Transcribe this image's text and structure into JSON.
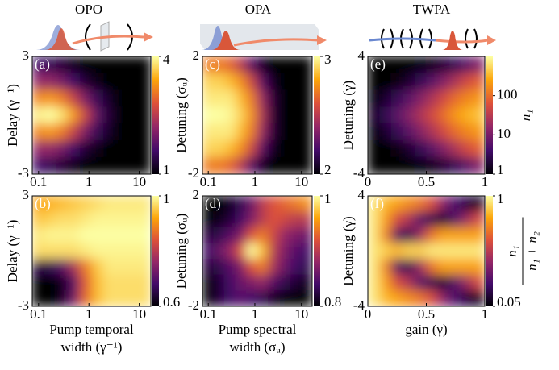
{
  "column_titles": [
    "OPO",
    "OPA",
    "TWPA"
  ],
  "colormap": [
    "#000004",
    "#420a68",
    "#932667",
    "#dd513a",
    "#fca50a",
    "#fcffa4"
  ],
  "chart_data": [
    {
      "type": "heatmap",
      "panel_label": "(a)",
      "y_label": "Delay (γ⁻¹)",
      "xlog": true,
      "xlim": [
        0.075,
        17
      ],
      "xticks": [
        0.1,
        1,
        10
      ],
      "ylim": [
        -3,
        3
      ],
      "yticks": [
        -3,
        3
      ],
      "zlim": [
        1,
        4
      ],
      "zticks": [
        1,
        4
      ],
      "z": [
        [
          1.6,
          1.5,
          1.3,
          1.1,
          1,
          1,
          1,
          1,
          1,
          1
        ],
        [
          2.2,
          2.2,
          2,
          1.6,
          1.3,
          1.1,
          1,
          1,
          1,
          1
        ],
        [
          3.2,
          3.3,
          3.1,
          2.6,
          2,
          1.5,
          1.2,
          1,
          1,
          1
        ],
        [
          3.9,
          4,
          3.8,
          3.3,
          2.6,
          1.8,
          1.3,
          1,
          1,
          1
        ],
        [
          3.2,
          3.3,
          3.1,
          2.6,
          2,
          1.5,
          1.2,
          1,
          1,
          1
        ],
        [
          2.2,
          2.2,
          2,
          1.6,
          1.3,
          1.1,
          1,
          1,
          1,
          1
        ],
        [
          1.6,
          1.5,
          1.3,
          1.1,
          1,
          1,
          1,
          1,
          1,
          1
        ]
      ]
    },
    {
      "type": "heatmap",
      "panel_label": "(b)",
      "y_label": "Delay (γ⁻¹)",
      "x_label": [
        "Pump temporal",
        "width (γ⁻¹)"
      ],
      "xlog": true,
      "xlim": [
        0.075,
        17
      ],
      "xticks": [
        0.1,
        1,
        10
      ],
      "ylim": [
        -3,
        3
      ],
      "yticks": [
        -3,
        3
      ],
      "zlim": [
        0.6,
        1
      ],
      "zticks": [
        0.6,
        1
      ],
      "z": [
        [
          0.92,
          0.93,
          0.94,
          0.95,
          0.96,
          0.97,
          0.98,
          0.98,
          0.98,
          0.98
        ],
        [
          0.95,
          0.96,
          0.97,
          0.97,
          0.98,
          0.99,
          0.99,
          0.99,
          0.99,
          0.99
        ],
        [
          0.98,
          0.99,
          0.99,
          0.99,
          1,
          1,
          1,
          1,
          1,
          1
        ],
        [
          0.97,
          0.97,
          0.97,
          0.97,
          0.98,
          0.99,
          0.99,
          0.99,
          0.99,
          0.99
        ],
        [
          0.65,
          0.66,
          0.7,
          0.78,
          0.88,
          0.95,
          0.98,
          0.98,
          0.98,
          0.98
        ],
        [
          0.6,
          0.6,
          0.62,
          0.7,
          0.85,
          0.94,
          0.97,
          0.97,
          0.97,
          0.97
        ],
        [
          0.6,
          0.6,
          0.62,
          0.72,
          0.86,
          0.94,
          0.97,
          0.97,
          0.97,
          0.97
        ]
      ]
    },
    {
      "type": "heatmap",
      "panel_label": "(c)",
      "y_label": "Detuning (σᵤ)",
      "xlog": true,
      "xlim": [
        0.075,
        17
      ],
      "xticks": [
        0.1,
        1,
        10
      ],
      "ylim": [
        -2,
        2
      ],
      "yticks": [
        -2,
        2
      ],
      "zlim": [
        2,
        3
      ],
      "zticks": [
        2,
        3
      ],
      "z": [
        [
          2.7,
          2.7,
          2.65,
          2.5,
          2.25,
          2.05,
          2,
          2,
          2,
          2
        ],
        [
          2.9,
          2.9,
          2.85,
          2.75,
          2.55,
          2.25,
          2.05,
          2,
          2,
          2
        ],
        [
          2.95,
          2.95,
          2.95,
          2.85,
          2.7,
          2.4,
          2.1,
          2,
          2,
          2
        ],
        [
          3,
          3,
          2.98,
          2.9,
          2.75,
          2.45,
          2.1,
          2,
          2,
          2
        ],
        [
          2.95,
          2.95,
          2.95,
          2.85,
          2.7,
          2.4,
          2.1,
          2,
          2,
          2
        ],
        [
          2.9,
          2.9,
          2.85,
          2.75,
          2.55,
          2.25,
          2.05,
          2,
          2,
          2
        ],
        [
          2.7,
          2.7,
          2.65,
          2.5,
          2.25,
          2.05,
          2,
          2,
          2,
          2
        ]
      ]
    },
    {
      "type": "heatmap",
      "panel_label": "(d)",
      "y_label": "Detuning (σᵤ)",
      "x_label": [
        "Pump spectral",
        "width (σᵤ)"
      ],
      "xlog": true,
      "xlim": [
        0.075,
        17
      ],
      "xticks": [
        0.1,
        1,
        10
      ],
      "ylim": [
        -2,
        2
      ],
      "yticks": [
        -2,
        2
      ],
      "zlim": [
        0.8,
        1
      ],
      "zticks": [
        0.8,
        1
      ],
      "z": [
        [
          0.8,
          0.8,
          0.81,
          0.83,
          0.86,
          0.9,
          0.92,
          0.93,
          0.94,
          0.95
        ],
        [
          0.8,
          0.81,
          0.82,
          0.84,
          0.87,
          0.9,
          0.92,
          0.91,
          0.9,
          0.9
        ],
        [
          0.82,
          0.83,
          0.85,
          0.87,
          0.92,
          0.94,
          0.91,
          0.88,
          0.87,
          0.86
        ],
        [
          0.84,
          0.86,
          0.88,
          0.92,
          1,
          0.97,
          0.9,
          0.87,
          0.85,
          0.84
        ],
        [
          0.82,
          0.83,
          0.85,
          0.87,
          0.92,
          0.94,
          0.89,
          0.86,
          0.84,
          0.83
        ],
        [
          0.8,
          0.82,
          0.84,
          0.86,
          0.87,
          0.88,
          0.85,
          0.83,
          0.82,
          0.81
        ],
        [
          0.8,
          0.82,
          0.84,
          0.85,
          0.84,
          0.83,
          0.81,
          0.8,
          0.8,
          0.8
        ]
      ]
    },
    {
      "type": "heatmap",
      "panel_label": "(e)",
      "y_label": "Detuning (γ)",
      "xlog": false,
      "xlim": [
        0,
        1
      ],
      "xticks": [
        0,
        0.5,
        1
      ],
      "ylim": [
        -4,
        4
      ],
      "yticks": [
        -4,
        4
      ],
      "zlim": [
        1,
        1000
      ],
      "zlog": true,
      "zticks": [
        1,
        10,
        100
      ],
      "colorbar_label": "n₁",
      "z": [
        [
          1,
          1,
          1,
          1,
          1.1,
          1.3,
          2,
          3,
          6,
          12
        ],
        [
          1,
          1,
          1.2,
          1.8,
          3,
          6,
          12,
          25,
          50,
          80
        ],
        [
          1.1,
          1.8,
          3,
          6,
          12,
          25,
          50,
          100,
          150,
          200
        ],
        [
          1.5,
          3,
          6,
          12,
          25,
          50,
          100,
          200,
          300,
          400
        ],
        [
          1.1,
          1.8,
          3,
          6,
          12,
          25,
          50,
          100,
          150,
          200
        ],
        [
          1,
          1,
          1.2,
          1.8,
          3,
          6,
          12,
          25,
          50,
          80
        ],
        [
          1,
          1,
          1,
          1,
          1.1,
          1.3,
          2,
          3,
          6,
          12
        ]
      ]
    },
    {
      "type": "heatmap",
      "panel_label": "(f)",
      "y_label": "Detuning (γ)",
      "x_label": [
        "gain (γ)"
      ],
      "xlog": false,
      "xlim": [
        0,
        1
      ],
      "xticks": [
        0,
        0.5,
        1
      ],
      "ylim": [
        -4,
        4
      ],
      "yticks": [
        -4,
        4
      ],
      "zlim": [
        0.05,
        1
      ],
      "zticks": [
        0.05,
        1
      ],
      "colorbar_label": {
        "numerator": "n₁",
        "denominator": "n₁ + n₂"
      },
      "z": [
        [
          0.95,
          0.85,
          0.8,
          0.75,
          0.7,
          0.6,
          0.4,
          0.25,
          0.15,
          0.1
        ],
        [
          0.95,
          0.8,
          0.6,
          0.5,
          0.3,
          0.2,
          0.15,
          0.3,
          0.45,
          0.6
        ],
        [
          0.95,
          0.75,
          0.3,
          0.2,
          0.45,
          0.7,
          0.8,
          0.8,
          0.8,
          0.8
        ],
        [
          0.95,
          0.9,
          0.85,
          0.9,
          0.9,
          0.95,
          0.95,
          0.95,
          0.95,
          0.95
        ],
        [
          0.95,
          0.75,
          0.3,
          0.2,
          0.45,
          0.7,
          0.8,
          0.8,
          0.8,
          0.8
        ],
        [
          0.95,
          0.8,
          0.6,
          0.5,
          0.3,
          0.2,
          0.15,
          0.3,
          0.45,
          0.6
        ],
        [
          0.95,
          0.85,
          0.8,
          0.75,
          0.7,
          0.6,
          0.4,
          0.25,
          0.15,
          0.1
        ]
      ]
    }
  ]
}
